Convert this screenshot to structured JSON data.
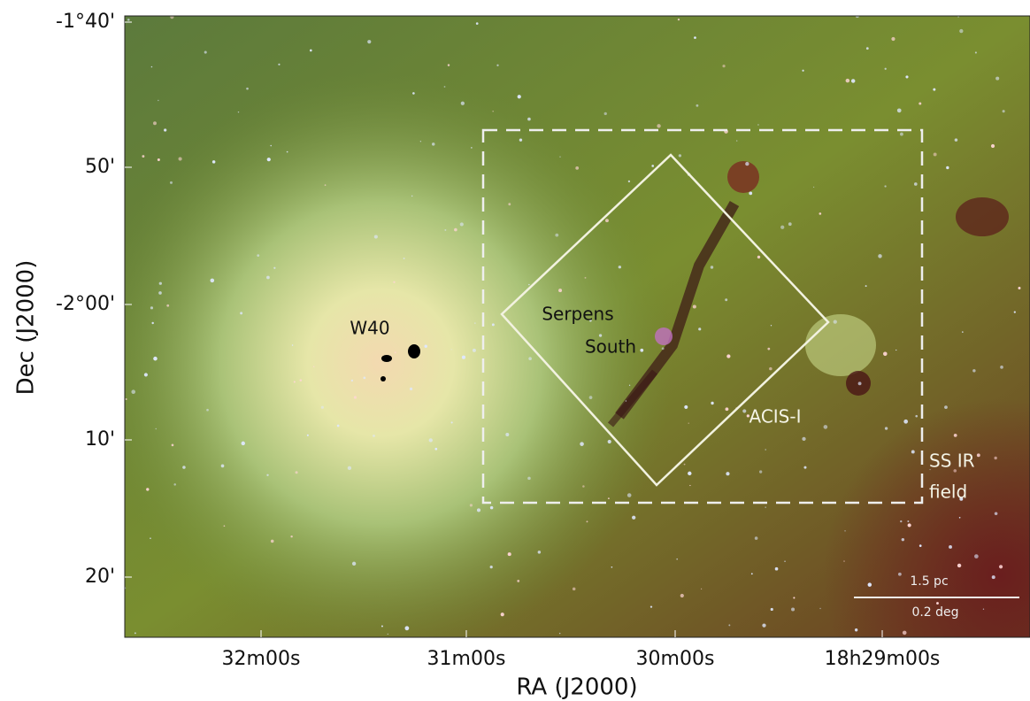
{
  "y_axis": {
    "title": "Dec (J2000)",
    "ticks": [
      "-1°40'",
      "50'",
      "-2°00'",
      "10'",
      "20'"
    ]
  },
  "x_axis": {
    "title": "RA (J2000)",
    "ticks": [
      "32m00s",
      "31m00s",
      "30m00s",
      "18h29m00s"
    ]
  },
  "annotations": {
    "w40": "W40",
    "serpens": "Serpens",
    "south": "South",
    "acis": "ACIS-I",
    "ss_ir": "SS IR",
    "field": "field"
  },
  "scale_bar": {
    "top": "1.5 pc",
    "bottom": "0.2 deg"
  }
}
